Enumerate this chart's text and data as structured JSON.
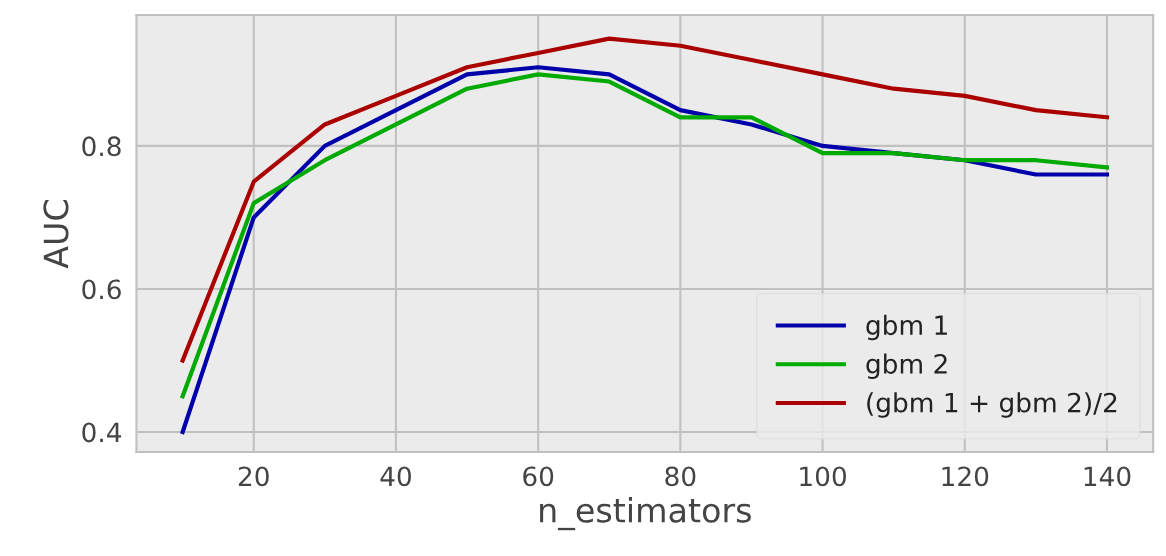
{
  "chart_data": {
    "type": "line",
    "xlabel": "n_estimators",
    "ylabel": "AUC",
    "x": [
      10,
      20,
      30,
      40,
      50,
      60,
      70,
      80,
      90,
      100,
      110,
      120,
      130,
      140
    ],
    "series": [
      {
        "name": "gbm 1",
        "color": "#0000aa",
        "values": [
          0.4,
          0.7,
          0.8,
          0.85,
          0.9,
          0.91,
          0.9,
          0.85,
          0.83,
          0.8,
          0.79,
          0.78,
          0.76,
          0.76
        ]
      },
      {
        "name": "gbm 2",
        "color": "#00aa00",
        "values": [
          0.45,
          0.72,
          0.78,
          0.83,
          0.88,
          0.9,
          0.89,
          0.84,
          0.84,
          0.79,
          0.79,
          0.78,
          0.78,
          0.77
        ]
      },
      {
        "name": "(gbm 1 + gbm 2)/2",
        "color": "#aa0000",
        "values": [
          0.5,
          0.75,
          0.83,
          0.87,
          0.91,
          0.93,
          0.95,
          0.94,
          0.92,
          0.9,
          0.88,
          0.87,
          0.85,
          0.84
        ]
      }
    ],
    "xlim": [
      3.5,
      146.5
    ],
    "ylim": [
      0.372,
      0.983
    ],
    "xticks": [
      20,
      40,
      60,
      80,
      100,
      120,
      140
    ],
    "yticks": [
      {
        "value": 0.4,
        "label": "0.4"
      },
      {
        "value": 0.6,
        "label": "0.6"
      },
      {
        "value": 0.8,
        "label": "0.8"
      }
    ],
    "grid": true,
    "legend": "bottom right"
  }
}
